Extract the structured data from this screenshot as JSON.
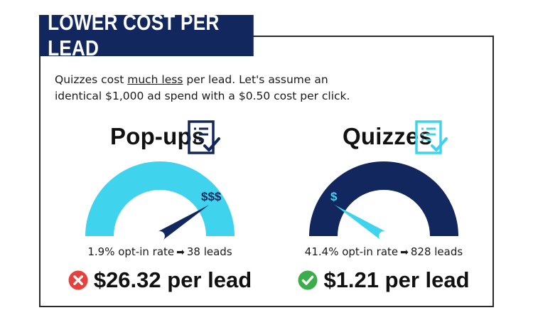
{
  "title": "LOWER COST PER LEAD",
  "intro": {
    "part1": "Quizzes cost ",
    "emphasis": "much less",
    "part2": " per lead. Let's assume an",
    "line2": "identical $1,000 ad spend with a $0.50 cost per click."
  },
  "colors": {
    "navy": "#13275f",
    "cyan": "#3fd3ee",
    "bad": "#e8403c",
    "good": "#3aae4a"
  },
  "popups": {
    "heading": "Pop-ups",
    "icon": "checklist-icon",
    "gauge_symbol": "$$$",
    "gauge_level": 0.82,
    "rate_text": "1.9% opt-in rate",
    "leads_text": "38 leads",
    "status_icon": "x-circle-icon",
    "cost_text": "$26.32 per lead"
  },
  "quizzes": {
    "heading": "Quizzes",
    "icon": "checklist-icon",
    "gauge_symbol": "$",
    "gauge_level": 0.18,
    "rate_text": "41.4% opt-in rate",
    "leads_text": "828 leads",
    "status_icon": "check-circle-icon",
    "cost_text": "$1.21 per lead"
  }
}
